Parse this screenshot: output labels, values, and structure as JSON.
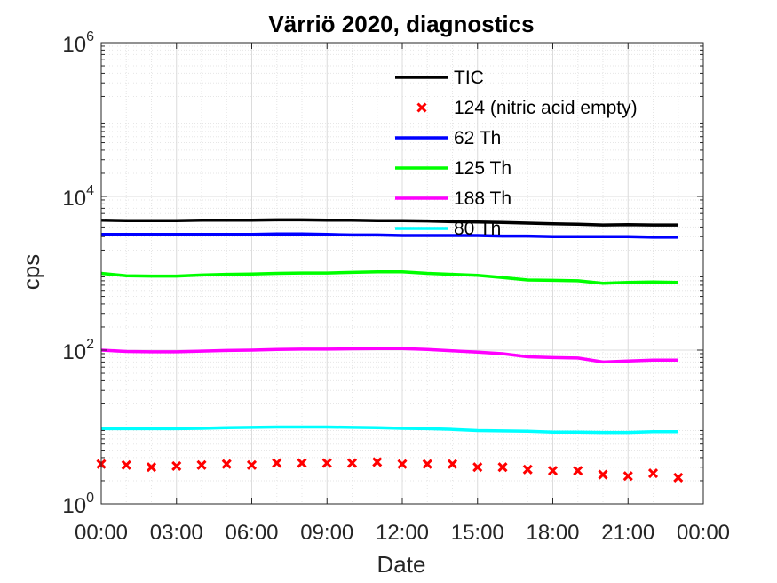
{
  "chart_data": {
    "type": "line",
    "title": "Värriö 2020, diagnostics",
    "xlabel": "Date",
    "ylabel": "cps",
    "yscale": "log",
    "ylim": [
      1,
      1000000
    ],
    "yticks": [
      {
        "value": 1,
        "base": "10",
        "exp": "0"
      },
      {
        "value": 100,
        "base": "10",
        "exp": "2"
      },
      {
        "value": 10000,
        "base": "10",
        "exp": "4"
      },
      {
        "value": 1000000,
        "base": "10",
        "exp": "6"
      }
    ],
    "xlim": [
      0,
      24
    ],
    "xticks": [
      "00:00",
      "03:00",
      "06:00",
      "09:00",
      "12:00",
      "15:00",
      "18:00",
      "21:00",
      "00:00"
    ],
    "grid": true,
    "minor_grid": true,
    "legend_position": "top-right (inside)",
    "x": [
      0,
      1,
      2,
      3,
      4,
      5,
      6,
      7,
      8,
      9,
      10,
      11,
      12,
      13,
      14,
      15,
      16,
      17,
      18,
      19,
      20,
      21,
      22,
      23
    ],
    "series": [
      {
        "name": "TIC",
        "color": "#000000",
        "style": "line",
        "values": [
          4900,
          4850,
          4850,
          4850,
          4900,
          4900,
          4900,
          4950,
          4950,
          4900,
          4900,
          4850,
          4850,
          4800,
          4700,
          4650,
          4600,
          4500,
          4400,
          4350,
          4250,
          4300,
          4250,
          4250
        ]
      },
      {
        "name": "124 (nitric acid empty)",
        "color": "#ff0000",
        "style": "marker-x",
        "values": [
          3.3,
          3.2,
          3.0,
          3.1,
          3.2,
          3.3,
          3.2,
          3.4,
          3.4,
          3.4,
          3.4,
          3.5,
          3.3,
          3.3,
          3.3,
          3.0,
          3.0,
          2.8,
          2.7,
          2.7,
          2.4,
          2.3,
          2.5,
          2.2
        ]
      },
      {
        "name": "62 Th",
        "color": "#0000ff",
        "style": "line",
        "values": [
          3200,
          3200,
          3200,
          3200,
          3200,
          3200,
          3200,
          3250,
          3250,
          3200,
          3150,
          3150,
          3100,
          3100,
          3100,
          3100,
          3050,
          3050,
          3000,
          3000,
          3000,
          3000,
          2950,
          2950
        ]
      },
      {
        "name": "125 Th",
        "color": "#00ff00",
        "style": "line",
        "values": [
          1000,
          930,
          920,
          920,
          950,
          970,
          980,
          1000,
          1010,
          1010,
          1030,
          1050,
          1050,
          1000,
          970,
          940,
          880,
          820,
          810,
          800,
          740,
          760,
          770,
          760
        ]
      },
      {
        "name": "188 Th",
        "color": "#ff00ff",
        "style": "line",
        "values": [
          100,
          96,
          95,
          95,
          97,
          99,
          100,
          102,
          103,
          103,
          104,
          105,
          105,
          102,
          98,
          94,
          90,
          82,
          80,
          79,
          70,
          72,
          74,
          74
        ]
      },
      {
        "name": "80 Th",
        "color": "#00ffff",
        "style": "line",
        "values": [
          9.5,
          9.5,
          9.5,
          9.5,
          9.6,
          9.8,
          9.9,
          10.0,
          10.0,
          10.0,
          9.9,
          9.8,
          9.6,
          9.5,
          9.3,
          9.0,
          8.9,
          8.8,
          8.6,
          8.6,
          8.5,
          8.5,
          8.7,
          8.7
        ]
      }
    ]
  }
}
